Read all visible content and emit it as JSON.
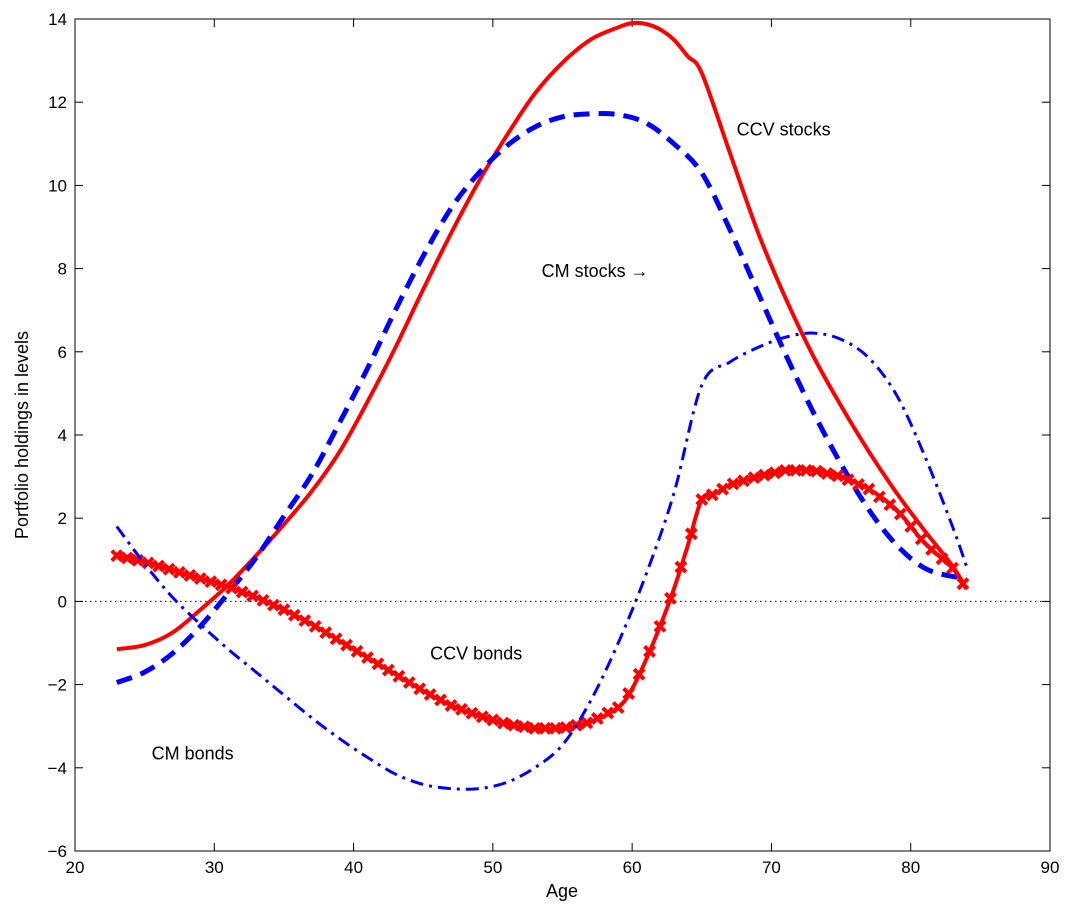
{
  "chart_data": {
    "type": "line",
    "title": "",
    "xlabel": "Age",
    "ylabel": "Portfolio holdings in levels",
    "xlim": [
      20,
      90
    ],
    "ylim": [
      -6,
      14
    ],
    "xticks": [
      20,
      30,
      40,
      50,
      60,
      70,
      80,
      90
    ],
    "yticks": [
      -6,
      -4,
      -2,
      0,
      2,
      4,
      6,
      8,
      10,
      12,
      14
    ],
    "grid": false,
    "legend": "none",
    "zero_line": true,
    "series": [
      {
        "name": "CCV stocks",
        "color": "#ff0000",
        "style": "solid",
        "x": [
          23,
          25,
          27,
          29,
          31,
          33,
          35,
          37,
          39,
          41,
          43,
          45,
          47,
          49,
          51,
          53,
          55,
          57,
          59,
          60,
          61,
          62,
          63,
          64,
          65,
          67,
          69,
          71,
          73,
          75,
          77,
          79,
          81,
          83,
          84
        ],
        "y": [
          -1.15,
          -1.05,
          -0.75,
          -0.2,
          0.4,
          1.1,
          1.85,
          2.65,
          3.6,
          4.8,
          6.1,
          7.5,
          8.85,
          10.1,
          11.2,
          12.2,
          12.95,
          13.5,
          13.8,
          13.9,
          13.88,
          13.75,
          13.5,
          13.1,
          12.7,
          10.8,
          8.9,
          7.3,
          5.9,
          4.7,
          3.6,
          2.6,
          1.7,
          0.85,
          0.3
        ]
      },
      {
        "name": "CM stocks",
        "color": "#0000ff",
        "style": "dashed",
        "x": [
          23,
          25,
          27,
          29,
          31,
          33,
          35,
          37,
          39,
          41,
          43,
          45,
          47,
          49,
          51,
          53,
          55,
          57,
          59,
          61,
          63,
          65,
          67,
          69,
          71,
          73,
          75,
          77,
          79,
          81,
          83,
          84
        ],
        "y": [
          -1.95,
          -1.7,
          -1.25,
          -0.6,
          0.2,
          1.05,
          2.05,
          3.05,
          4.3,
          5.6,
          7.0,
          8.3,
          9.45,
          10.3,
          10.95,
          11.4,
          11.65,
          11.72,
          11.7,
          11.5,
          11.0,
          10.3,
          8.95,
          7.45,
          5.95,
          4.55,
          3.3,
          2.2,
          1.35,
          0.8,
          0.6,
          0.6
        ]
      },
      {
        "name": "CCV bonds",
        "color": "#ff0000",
        "style": "solid-markers",
        "x": [
          23,
          25,
          27,
          29,
          31,
          33,
          35,
          37,
          39,
          41,
          43,
          45,
          47,
          49,
          51,
          53,
          55,
          57,
          59,
          60,
          61,
          62,
          63,
          64,
          65,
          66,
          67,
          69,
          71,
          73,
          75,
          77,
          79,
          81,
          83,
          84
        ],
        "y": [
          1.1,
          0.95,
          0.75,
          0.55,
          0.35,
          0.1,
          -0.2,
          -0.55,
          -0.95,
          -1.35,
          -1.75,
          -2.15,
          -2.5,
          -2.75,
          -2.95,
          -3.05,
          -3.05,
          -2.9,
          -2.55,
          -2.1,
          -1.4,
          -0.6,
          0.3,
          1.35,
          2.45,
          2.6,
          2.8,
          3.0,
          3.15,
          3.15,
          3.0,
          2.7,
          2.2,
          1.4,
          0.8,
          0.3
        ]
      },
      {
        "name": "CM bonds",
        "color": "#0000ff",
        "style": "dash-dot",
        "x": [
          23,
          25,
          27,
          29,
          31,
          33,
          35,
          37,
          39,
          41,
          43,
          45,
          47,
          49,
          51,
          53,
          55,
          57,
          59,
          61,
          63,
          65,
          67,
          69,
          71,
          73,
          75,
          77,
          79,
          81,
          83,
          84
        ],
        "y": [
          1.8,
          0.9,
          0.1,
          -0.55,
          -1.15,
          -1.7,
          -2.25,
          -2.8,
          -3.3,
          -3.75,
          -4.15,
          -4.4,
          -4.5,
          -4.5,
          -4.35,
          -4.0,
          -3.45,
          -2.4,
          -1.0,
          0.65,
          2.6,
          5.2,
          5.75,
          6.1,
          6.35,
          6.45,
          6.3,
          5.85,
          4.95,
          3.5,
          1.8,
          0.85
        ]
      }
    ],
    "annotations": [
      {
        "text": "CCV stocks",
        "x": 67.5,
        "y": 11.2,
        "anchor": "start"
      },
      {
        "text": "CM stocks →",
        "x": 53.5,
        "y": 7.8,
        "anchor": "start"
      },
      {
        "text": "CCV bonds",
        "x": 45.5,
        "y": -1.4,
        "anchor": "start"
      },
      {
        "text": "CM bonds",
        "x": 25.5,
        "y": -3.8,
        "anchor": "start"
      }
    ]
  }
}
